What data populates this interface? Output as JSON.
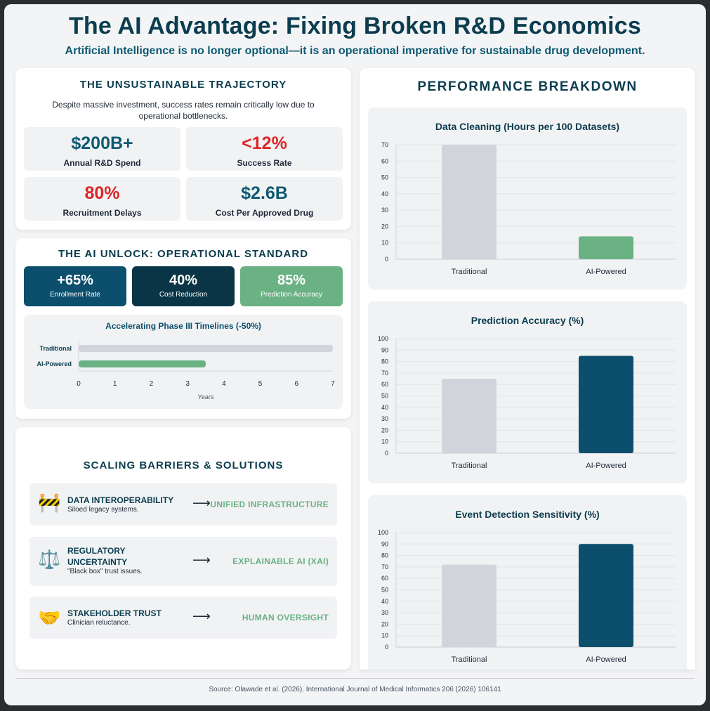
{
  "header": {
    "title": "The AI Advantage: Fixing Broken R&D Economics",
    "subtitle": "Artificial Intelligence is no longer optional—it is an operational imperative for sustainable drug development."
  },
  "trajectory": {
    "heading": "THE UNSUSTAINABLE TRAJECTORY",
    "description": "Despite massive investment, success rates remain critically low due to operational bottlenecks.",
    "stats": [
      {
        "value": "$200B+",
        "label": "Annual R&D Spend"
      },
      {
        "value": "<12%",
        "label": "Success Rate"
      },
      {
        "value": "80%",
        "label": "Recruitment Delays"
      },
      {
        "value": "$2.6B",
        "label": "Cost Per Approved Drug"
      }
    ]
  },
  "unlock": {
    "heading": "THE AI UNLOCK: OPERATIONAL STANDARD",
    "metrics": [
      {
        "value": "+65%",
        "label": "Enrollment Rate"
      },
      {
        "value": "40%",
        "label": "Cost Reduction"
      },
      {
        "value": "85%",
        "label": "Prediction Accuracy"
      }
    ]
  },
  "barriers": {
    "heading": "SCALING BARRIERS & SOLUTIONS",
    "items": [
      {
        "icon": "🚧",
        "title": "DATA INTEROPERABILITY",
        "desc": "Siloed legacy systems.",
        "arrow": "⟶",
        "solution": "UNIFIED INFRASTRUCTURE"
      },
      {
        "icon": "⚖️",
        "title": "REGULATORY UNCERTAINTY",
        "desc": "\"Black box\" trust issues.",
        "arrow": "⟶",
        "solution": "EXPLAINABLE AI (XAI)"
      },
      {
        "icon": "🤝",
        "title": "STAKEHOLDER TRUST",
        "desc": "Clinician reluctance.",
        "arrow": "⟶",
        "solution": "HUMAN OVERSIGHT"
      }
    ]
  },
  "performance": {
    "heading": "PERFORMANCE BREAKDOWN"
  },
  "colors": {
    "traditional": "#d1d5db",
    "ai_green": "#6ab283",
    "ai_navy": "#0b4f6c"
  },
  "chart_data": [
    {
      "type": "bar",
      "orientation": "horizontal",
      "title": "Accelerating Phase III Timelines (-50%)",
      "categories": [
        "Traditional",
        "AI-Powered"
      ],
      "values": [
        7,
        3.5
      ],
      "xlabel": "Years",
      "xlim": [
        0,
        7
      ],
      "ticks": [
        "0",
        "1",
        "2",
        "3",
        "4",
        "5",
        "6",
        "7"
      ]
    },
    {
      "type": "bar",
      "title": "Data Cleaning (Hours per 100 Datasets)",
      "categories": [
        "Traditional",
        "AI-Powered"
      ],
      "values": [
        70,
        14
      ],
      "ylim": [
        0,
        70
      ],
      "ticks": [
        "0",
        "10",
        "20",
        "30",
        "40",
        "50",
        "60",
        "70"
      ]
    },
    {
      "type": "bar",
      "title": "Prediction Accuracy (%)",
      "categories": [
        "Traditional",
        "AI-Powered"
      ],
      "values": [
        65,
        85
      ],
      "ylim": [
        0,
        100
      ],
      "ticks": [
        "0",
        "10",
        "20",
        "30",
        "40",
        "50",
        "60",
        "70",
        "80",
        "90",
        "100"
      ]
    },
    {
      "type": "bar",
      "title": "Event Detection Sensitivity (%)",
      "categories": [
        "Traditional",
        "AI-Powered"
      ],
      "values": [
        72,
        90
      ],
      "ylim": [
        0,
        100
      ],
      "ticks": [
        "0",
        "10",
        "20",
        "30",
        "40",
        "50",
        "60",
        "70",
        "80",
        "90",
        "100"
      ]
    }
  ],
  "footer": {
    "source": "Source: Olawade et al. (2026). International Journal of Medical Informatics 206 (2026) 106141"
  }
}
